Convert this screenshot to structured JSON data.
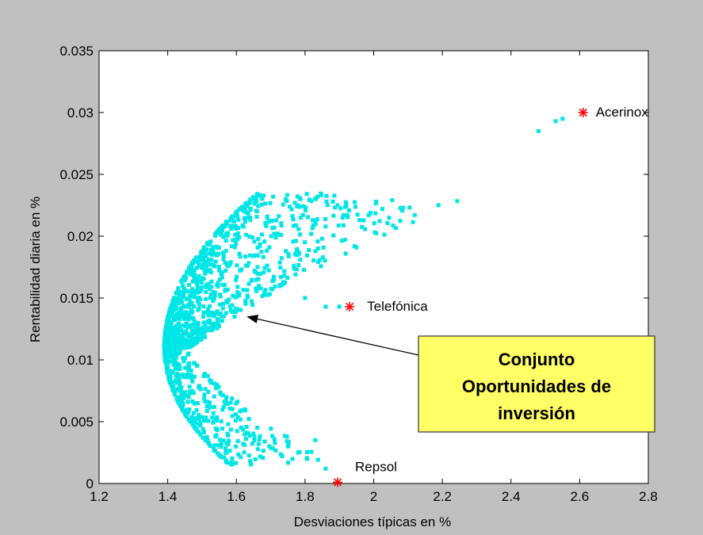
{
  "colors": {
    "figure_bg": "#c0c0c0",
    "axes_bg": "#ffffff",
    "points": "#00e6e6",
    "asset_marker": "#ff0000",
    "callout_fill": "#ffff66",
    "callout_border": "#333333",
    "arrow": "#000000"
  },
  "chart_data": {
    "type": "scatter",
    "title": "",
    "xlabel": "Desviaciones típicas en %",
    "ylabel": "Rentabilidad diaria en %",
    "xlim": [
      1.2,
      2.8
    ],
    "ylim": [
      0,
      0.035
    ],
    "grid": false,
    "x_ticks": [
      1.2,
      1.4,
      1.6,
      1.8,
      2.0,
      2.2,
      2.4,
      2.6,
      2.8
    ],
    "x_tick_labels": [
      "1.2",
      "1.4",
      "1.6",
      "1.8",
      "2",
      "2.2",
      "2.4",
      "2.6",
      "2.8"
    ],
    "y_ticks": [
      0,
      0.005,
      0.01,
      0.015,
      0.02,
      0.025,
      0.03,
      0.035
    ],
    "y_tick_labels": [
      "0",
      "0.005",
      "0.01",
      "0.015",
      "0.02",
      "0.025",
      "0.03",
      "0.035"
    ],
    "assets": [
      {
        "name": "Acerinox",
        "x": 2.61,
        "y": 0.03
      },
      {
        "name": "Telefónica",
        "x": 1.93,
        "y": 0.0143
      },
      {
        "name": "Repsol",
        "x": 1.895,
        "y": 0.0001
      }
    ],
    "portfolio_points": {
      "description": "Random portfolios forming the investment opportunity set",
      "count": 1500,
      "envelope": {
        "vertex": [
          1.39,
          0.011
        ],
        "upper_tip": [
          2.55,
          0.0295
        ],
        "lower_tip": [
          1.86,
          0.0005
        ]
      }
    },
    "annotation": {
      "lines": [
        "Conjunto",
        "Oportunidades de",
        "inversión"
      ],
      "arrow_target": {
        "x": 1.63,
        "y": 0.0135
      }
    }
  }
}
